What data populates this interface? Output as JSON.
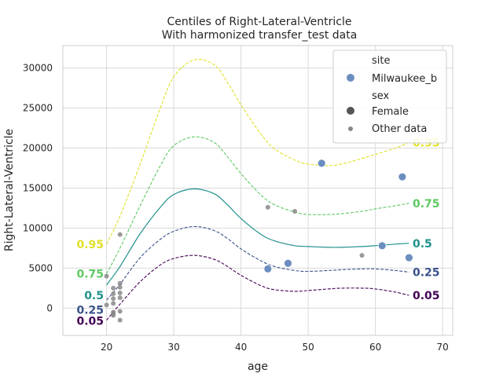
{
  "chart_data": {
    "type": "scatter",
    "title": "Centiles of Right-Lateral-Ventricle",
    "subtitle": "With harmonized transfer_test data",
    "xlabel": "age",
    "ylabel": "Right-Lateral-Ventricle",
    "xlim": [
      13.5,
      71.5
    ],
    "ylim": [
      -3400,
      32800
    ],
    "xticks": [
      20,
      30,
      40,
      50,
      60,
      70
    ],
    "yticks": [
      0,
      5000,
      10000,
      15000,
      20000,
      25000,
      30000
    ],
    "grid": true,
    "legend_position": "top-right",
    "legend": {
      "hue_title": "site",
      "hue_entries": [
        {
          "label": "Milwaukee_b",
          "color": "#6c8ebf"
        }
      ],
      "size_title": "sex",
      "size_entries": [
        {
          "label": "Female",
          "color": "#555555"
        },
        {
          "label": "Other data",
          "color": "#888888"
        }
      ]
    },
    "centiles": [
      {
        "name": "0.05",
        "color": "#440154",
        "dash": true,
        "x": [
          20,
          22,
          25,
          28,
          30,
          33,
          36,
          38,
          40,
          43,
          45,
          48,
          50,
          53,
          55,
          58,
          60,
          63,
          65
        ],
        "y": [
          -1500,
          500,
          3300,
          5400,
          6200,
          6600,
          6100,
          5200,
          4100,
          2800,
          2300,
          2100,
          2200,
          2400,
          2500,
          2500,
          2400,
          2000,
          1600
        ],
        "label_left_y": -1600,
        "label_right_y": 1600
      },
      {
        "name": "0.25",
        "color": "#3b528b",
        "dash": true,
        "x": [
          20,
          22,
          25,
          28,
          30,
          33,
          36,
          38,
          40,
          43,
          45,
          48,
          50,
          53,
          55,
          58,
          60,
          63,
          65
        ],
        "y": [
          1000,
          3000,
          6300,
          8600,
          9600,
          10200,
          9700,
          8700,
          7400,
          5900,
          5200,
          4700,
          4600,
          4700,
          4800,
          4900,
          4900,
          4700,
          4500
        ],
        "label_left_y": -200,
        "label_right_y": 4500
      },
      {
        "name": "0.5",
        "color": "#21918c",
        "dash": false,
        "x": [
          20,
          22,
          25,
          28,
          30,
          33,
          36,
          38,
          40,
          43,
          45,
          48,
          50,
          53,
          55,
          58,
          60,
          63,
          65
        ],
        "y": [
          2900,
          5200,
          9300,
          12600,
          14200,
          14900,
          14300,
          12900,
          11200,
          9200,
          8400,
          7800,
          7700,
          7600,
          7600,
          7700,
          7800,
          8000,
          8100
        ],
        "label_left_y": 1600,
        "label_right_y": 8100
      },
      {
        "name": "0.75",
        "color": "#5ec962",
        "dash": true,
        "x": [
          20,
          22,
          25,
          28,
          30,
          33,
          36,
          38,
          40,
          43,
          45,
          48,
          50,
          53,
          55,
          58,
          60,
          63,
          65
        ],
        "y": [
          4300,
          7500,
          12800,
          17800,
          20300,
          21400,
          20700,
          18900,
          16800,
          14100,
          12900,
          12000,
          11700,
          11700,
          11800,
          12100,
          12400,
          12800,
          13100
        ],
        "label_left_y": 4300,
        "label_right_y": 13100
      },
      {
        "name": "0.95",
        "color": "#e0e028",
        "dash": true,
        "x": [
          20,
          22,
          25,
          28,
          30,
          33,
          36,
          38,
          40,
          43,
          45,
          48,
          50,
          53,
          55,
          58,
          60,
          63,
          65
        ],
        "y": [
          8000,
          11500,
          18000,
          25000,
          28900,
          31000,
          30400,
          28200,
          25400,
          21700,
          19900,
          18500,
          18000,
          17800,
          18000,
          18700,
          19200,
          20000,
          20700
        ],
        "label_left_y": 8000,
        "label_right_y": 20700
      }
    ],
    "site_points": {
      "name": "Milwaukee_b",
      "color": "#6c8ebf",
      "x": [
        44,
        47,
        52,
        61,
        64,
        65
      ],
      "y": [
        4900,
        5600,
        18100,
        7800,
        16400,
        6300
      ]
    },
    "other_points": {
      "name": "Other data",
      "color": "#888888",
      "x": [
        44,
        48,
        58,
        22,
        20,
        21,
        21,
        22,
        22,
        22,
        21,
        22,
        21,
        20,
        21,
        22,
        21,
        22,
        21
      ],
      "y": [
        12600,
        12100,
        6600,
        9200,
        4000,
        2500,
        1800,
        3100,
        2600,
        1900,
        1200,
        1300,
        600,
        400,
        -500,
        -400,
        -900,
        -1500,
        -700
      ]
    }
  }
}
